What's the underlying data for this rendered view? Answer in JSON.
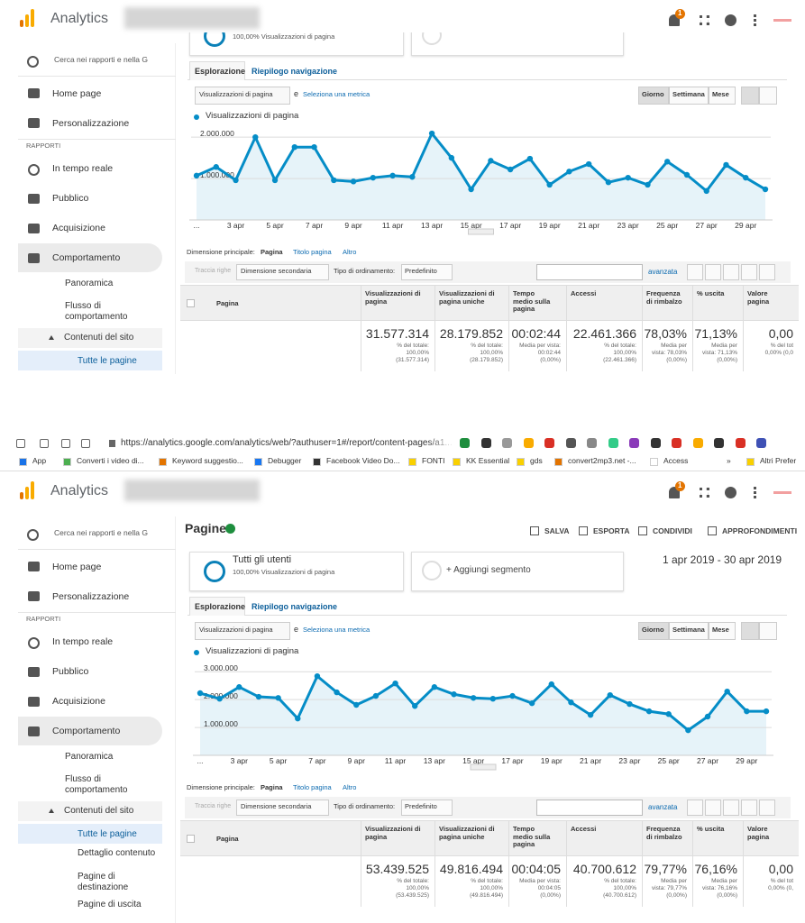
{
  "chart_data": [
    {
      "type": "line",
      "categories": [
        "...",
        null,
        "3 apr",
        null,
        "5 apr",
        null,
        "7 apr",
        null,
        "9 apr",
        null,
        "11 apr",
        null,
        "13 apr",
        null,
        "15 apr",
        null,
        "17 apr",
        null,
        "19 apr",
        null,
        "21 apr",
        null,
        "23 apr",
        null,
        "25 apr",
        null,
        "27 apr",
        null,
        "29 apr",
        null
      ],
      "series": [
        {
          "name": "Visualizzazioni di pagina",
          "color": "#058dc7",
          "values": [
            1070000,
            1280000,
            960000,
            2000000,
            960000,
            1760000,
            1760000,
            960000,
            930000,
            1020000,
            1070000,
            1040000,
            2090000,
            1500000,
            740000,
            1430000,
            1220000,
            1480000,
            850000,
            1170000,
            1350000,
            910000,
            1020000,
            850000,
            1410000,
            1090000,
            700000,
            1330000,
            1020000,
            740000
          ]
        }
      ],
      "ylim": [
        0,
        2200000
      ],
      "yticks": [
        {
          "value": 1000000,
          "label": "1.000.000"
        },
        {
          "value": 2000000,
          "label": "2.000.000"
        }
      ],
      "grid": true
    },
    {
      "type": "line",
      "categories": [
        "...",
        null,
        "3 apr",
        null,
        "5 apr",
        null,
        "7 apr",
        null,
        "9 apr",
        null,
        "11 apr",
        null,
        "13 apr",
        null,
        "15 apr",
        null,
        "17 apr",
        null,
        "19 apr",
        null,
        "21 apr",
        null,
        "23 apr",
        null,
        "25 apr",
        null,
        "27 apr",
        null,
        "29 apr",
        null
      ],
      "series": [
        {
          "name": "Visualizzazioni di pagina",
          "color": "#058dc7",
          "values": [
            2230000,
            2030000,
            2450000,
            2100000,
            2060000,
            1320000,
            2840000,
            2260000,
            1810000,
            2130000,
            2580000,
            1770000,
            2450000,
            2190000,
            2060000,
            2030000,
            2130000,
            1870000,
            2550000,
            1900000,
            1450000,
            2160000,
            1840000,
            1580000,
            1480000,
            900000,
            1390000,
            2290000,
            1580000,
            1580000
          ]
        }
      ],
      "ylim": [
        0,
        3200000
      ],
      "yticks": [
        {
          "value": 1000000,
          "label": "1.000.000"
        },
        {
          "value": 2000000,
          "label": "2.000.000"
        },
        {
          "value": 3000000,
          "label": "3.000.000"
        }
      ],
      "grid": true
    }
  ],
  "top_panel": {
    "app_name": "Analytics",
    "notifications": "1",
    "search": "Cerca nei rapporti e nella G",
    "nav_top": [
      "Home page",
      "Personalizzazione"
    ],
    "section": "RAPPORTI",
    "nav_reports": [
      "In tempo reale",
      "Pubblico",
      "Acquisizione",
      "Comportamento"
    ],
    "nav_behavior": [
      "Panoramica",
      "Flusso di comportamento"
    ],
    "site_content": "Contenuti del sito",
    "nav_site_content": [
      "Tutte le pagine"
    ],
    "segment_note": "100,00% Visualizzazioni di pagina",
    "tabs": [
      "Esplorazione",
      "Riepilogo navigazione"
    ],
    "metric": "Visualizzazioni di pagina",
    "and": "e",
    "select_metric": "Seleziona una metrica",
    "periods": [
      "Giorno",
      "Settimana",
      "Mese"
    ],
    "primary_dimension": {
      "label": "Dimensione principale:",
      "options": [
        "Pagina",
        "Titolo pagina",
        "Altro"
      ]
    },
    "toolbar": {
      "plot_rows": "Traccia righe",
      "secondary": "Dimensione secondaria",
      "sort_label": "Tipo di ordinamento:",
      "sort": "Predefinito",
      "advanced": "avanzata"
    },
    "table": {
      "headers": [
        "Pagina",
        "Visualizzazioni di pagina",
        "Visualizzazioni di pagina uniche",
        "Tempo medio sulla pagina",
        "Accessi",
        "Frequenza di rimbalzo",
        "% uscita",
        "Valore pagina"
      ],
      "totals": [
        {
          "value": "31.577.314",
          "note": [
            "% del totale:",
            "100,00%",
            "(31.577.314)"
          ]
        },
        {
          "value": "28.179.852",
          "note": [
            "% del totale:",
            "100,00%",
            "(28.179.852)"
          ]
        },
        {
          "value": "00:02:44",
          "note": [
            "Media per vista:",
            "00:02:44",
            "(0,00%)"
          ]
        },
        {
          "value": "22.461.366",
          "note": [
            "% del totale:",
            "100,00%",
            "(22.461.366)"
          ]
        },
        {
          "value": "78,03%",
          "note": [
            "Media per",
            "vista: 78,03%",
            "(0,00%)"
          ]
        },
        {
          "value": "71,13%",
          "note": [
            "Media per",
            "vista: 71,13%",
            "(0,00%)"
          ]
        },
        {
          "value": "0,00",
          "note": [
            "% del tot",
            "0,00% (0,0"
          ]
        }
      ]
    }
  },
  "browser": {
    "url": "https://analytics.google.com/analytics/web/?authuser=1#/report/content-pages/a1...",
    "bookmarks": [
      "App",
      "Converti i video di...",
      "Keyword suggestio...",
      "Debugger",
      "Facebook Video Do...",
      "FONTI",
      "KK Essential",
      "gds",
      "convert2mp3.net -...",
      "Access",
      "»",
      "Altri Prefer"
    ]
  },
  "bottom_panel": {
    "app_name": "Analytics",
    "notifications": "1",
    "search": "Cerca nei rapporti e nella G",
    "nav_top": [
      "Home page",
      "Personalizzazione"
    ],
    "section": "RAPPORTI",
    "nav_reports": [
      "In tempo reale",
      "Pubblico",
      "Acquisizione",
      "Comportamento"
    ],
    "nav_behavior": [
      "Panoramica",
      "Flusso di comportamento"
    ],
    "site_content": "Contenuti del sito",
    "nav_site_content": [
      "Tutte le pagine",
      "Dettaglio contenuto",
      "Pagine di destinazione",
      "Pagine di uscita"
    ],
    "page_title": "Pagine",
    "actions": [
      "SALVA",
      "ESPORTA",
      "CONDIVIDI",
      "APPROFONDIMENTI"
    ],
    "segment_name": "Tutti gli utenti",
    "segment_note": "100,00% Visualizzazioni di pagina",
    "add_segment": "+ Aggiungi segmento",
    "date_range": "1 apr 2019 - 30 apr 2019",
    "tabs": [
      "Esplorazione",
      "Riepilogo navigazione"
    ],
    "metric": "Visualizzazioni di pagina",
    "and": "e",
    "select_metric": "Seleziona una metrica",
    "periods": [
      "Giorno",
      "Settimana",
      "Mese"
    ],
    "primary_dimension": {
      "label": "Dimensione principale:",
      "options": [
        "Pagina",
        "Titolo pagina",
        "Altro"
      ]
    },
    "toolbar": {
      "plot_rows": "Traccia righe",
      "secondary": "Dimensione secondaria",
      "sort_label": "Tipo di ordinamento:",
      "sort": "Predefinito",
      "advanced": "avanzata"
    },
    "table": {
      "headers": [
        "Pagina",
        "Visualizzazioni di pagina",
        "Visualizzazioni di pagina uniche",
        "Tempo medio sulla pagina",
        "Accessi",
        "Frequenza di rimbalzo",
        "% uscita",
        "Valore pagina"
      ],
      "totals": [
        {
          "value": "53.439.525",
          "note": [
            "% del totale:",
            "100,00%",
            "(53.439.525)"
          ]
        },
        {
          "value": "49.816.494",
          "note": [
            "% del totale:",
            "100,00%",
            "(49.816.494)"
          ]
        },
        {
          "value": "00:04:05",
          "note": [
            "Media per vista:",
            "00:04:05",
            "(0,00%)"
          ]
        },
        {
          "value": "40.700.612",
          "note": [
            "% del totale:",
            "100,00%",
            "(40.700.612)"
          ]
        },
        {
          "value": "79,77%",
          "note": [
            "Media per",
            "vista: 79,77%",
            "(0,00%)"
          ]
        },
        {
          "value": "76,16%",
          "note": [
            "Media per",
            "vista: 76,16%",
            "(0,00%)"
          ]
        },
        {
          "value": "0,00",
          "note": [
            "% del tot",
            "0,00% (0,"
          ]
        }
      ]
    }
  }
}
